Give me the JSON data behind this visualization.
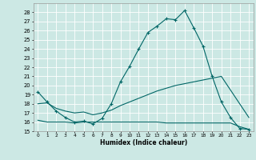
{
  "title": "",
  "xlabel": "Humidex (Indice chaleur)",
  "bg_color": "#cce8e4",
  "grid_color": "#ffffff",
  "line_color": "#006666",
  "xlim": [
    -0.5,
    23.5
  ],
  "ylim": [
    15,
    29
  ],
  "yticks": [
    15,
    16,
    17,
    18,
    19,
    20,
    21,
    22,
    23,
    24,
    25,
    26,
    27,
    28
  ],
  "xticks": [
    0,
    1,
    2,
    3,
    4,
    5,
    6,
    7,
    8,
    9,
    10,
    11,
    12,
    13,
    14,
    15,
    16,
    17,
    18,
    19,
    20,
    21,
    22,
    23
  ],
  "line1_x": [
    0,
    1,
    2,
    3,
    4,
    5,
    6,
    7,
    8,
    9,
    10,
    11,
    12,
    13,
    14,
    15,
    16,
    17,
    18,
    19,
    20,
    21,
    22,
    23
  ],
  "line1_y": [
    19.3,
    18.2,
    17.2,
    16.5,
    16.0,
    16.1,
    15.8,
    16.4,
    18.0,
    20.4,
    22.1,
    24.0,
    25.8,
    26.5,
    27.3,
    27.2,
    28.2,
    26.3,
    24.3,
    21.0,
    18.2,
    16.5,
    15.3,
    15.2
  ],
  "line2_x": [
    0,
    1,
    2,
    3,
    4,
    5,
    6,
    7,
    8,
    9,
    10,
    11,
    12,
    13,
    14,
    15,
    16,
    17,
    18,
    19,
    20,
    21,
    22,
    23
  ],
  "line2_y": [
    18.0,
    18.1,
    17.5,
    17.2,
    17.0,
    17.1,
    16.8,
    17.0,
    17.3,
    17.8,
    18.2,
    18.6,
    19.0,
    19.4,
    19.7,
    20.0,
    20.2,
    20.4,
    20.6,
    20.8,
    21.0,
    19.5,
    18.0,
    16.5
  ],
  "line3_x": [
    0,
    1,
    2,
    3,
    4,
    5,
    6,
    7,
    8,
    9,
    10,
    11,
    12,
    13,
    14,
    15,
    16,
    17,
    18,
    19,
    20,
    21,
    22,
    23
  ],
  "line3_y": [
    16.2,
    16.0,
    16.0,
    16.0,
    15.9,
    16.0,
    16.0,
    16.0,
    16.0,
    16.0,
    16.0,
    16.0,
    16.0,
    16.0,
    15.9,
    15.9,
    15.9,
    15.9,
    15.9,
    15.9,
    15.9,
    15.9,
    15.5,
    15.2
  ]
}
